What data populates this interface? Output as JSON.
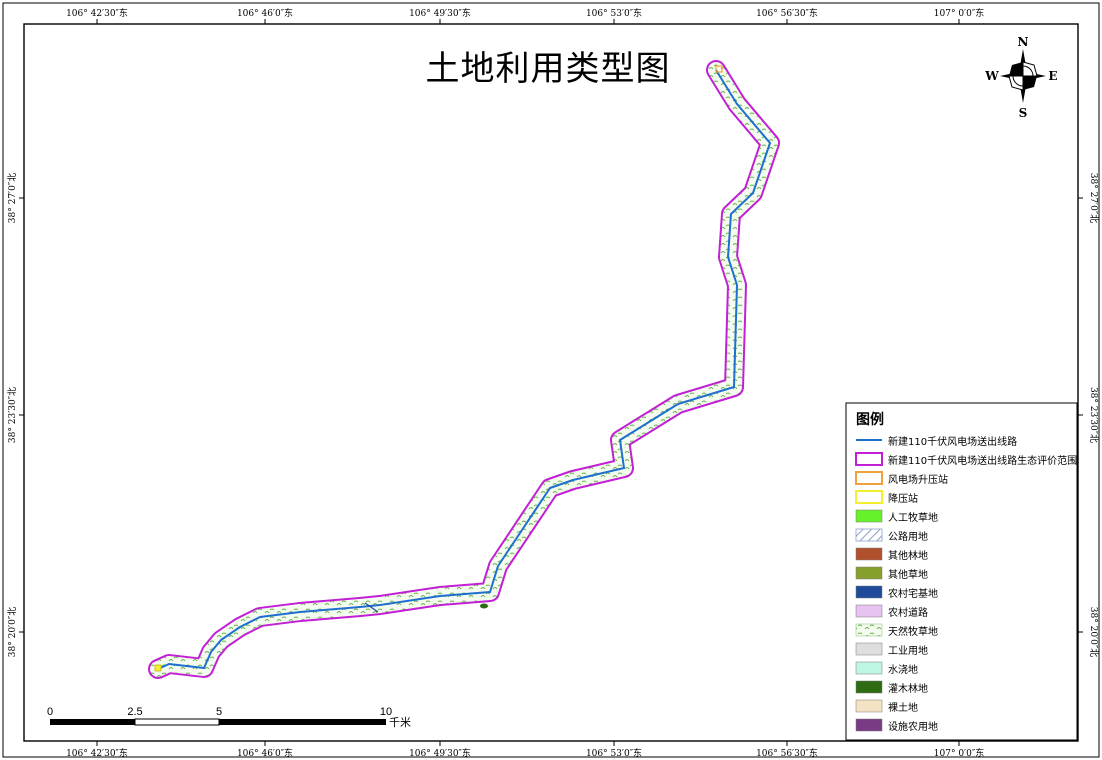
{
  "title": "土地利用类型图",
  "grid": {
    "top_lon": [
      "106° 42′30″东",
      "106° 46′0″东",
      "106° 49′30″东",
      "106° 53′0″东",
      "106° 56′30″东",
      "107° 0′0″东"
    ],
    "bottom_lon": [
      "106° 42′30″东",
      "106° 46′0″东",
      "106° 49′30″东",
      "106° 53′0″东",
      "106° 56′30″东",
      "107° 0′0″东"
    ],
    "left_lat": [
      "38° 27′0″北",
      "38° 23′30″北",
      "38° 20′0″北"
    ],
    "right_lat": [
      "38° 27′0″北",
      "38° 23′30″北",
      "38° 20′0″北"
    ]
  },
  "compass": {
    "n": "N",
    "s": "S",
    "e": "E",
    "w": "W"
  },
  "scale_bar": {
    "ticks": [
      "0",
      "2.5",
      "5",
      "10"
    ],
    "unit": "千米"
  },
  "legend": {
    "title": "图例",
    "items": [
      {
        "label": "新建110千伏风电场送出线路",
        "symbol": "line",
        "color": "#1f6fd1"
      },
      {
        "label": "新建110千伏风电场送出线路生态评价范围",
        "symbol": "outline",
        "color": "#c21fd6"
      },
      {
        "label": "风电场升压站",
        "symbol": "outline",
        "color": "#f0a23a"
      },
      {
        "label": "降压站",
        "symbol": "outline",
        "color": "#f2ef2e"
      },
      {
        "label": "人工牧草地",
        "symbol": "fill",
        "color": "#66f22a"
      },
      {
        "label": "公路用地",
        "symbol": "hatch",
        "color": "#8fa0c8"
      },
      {
        "label": "其他林地",
        "symbol": "fill",
        "color": "#b1502d"
      },
      {
        "label": "其他草地",
        "symbol": "fill",
        "color": "#86a02e"
      },
      {
        "label": "农村宅基地",
        "symbol": "fill",
        "color": "#1f4a9a"
      },
      {
        "label": "农村道路",
        "symbol": "fill",
        "color": "#e7c3f2"
      },
      {
        "label": "天然牧草地",
        "symbol": "grass",
        "color": "#6ab44a"
      },
      {
        "label": "工业用地",
        "symbol": "fill",
        "color": "#dedede"
      },
      {
        "label": "水浇地",
        "symbol": "fill",
        "color": "#bff7e5"
      },
      {
        "label": "灌木林地",
        "symbol": "fill",
        "color": "#2e6b12"
      },
      {
        "label": "裸土地",
        "symbol": "fill",
        "color": "#f3e3c3"
      },
      {
        "label": "设施农用地",
        "symbol": "fill",
        "color": "#7a3b85"
      }
    ]
  }
}
